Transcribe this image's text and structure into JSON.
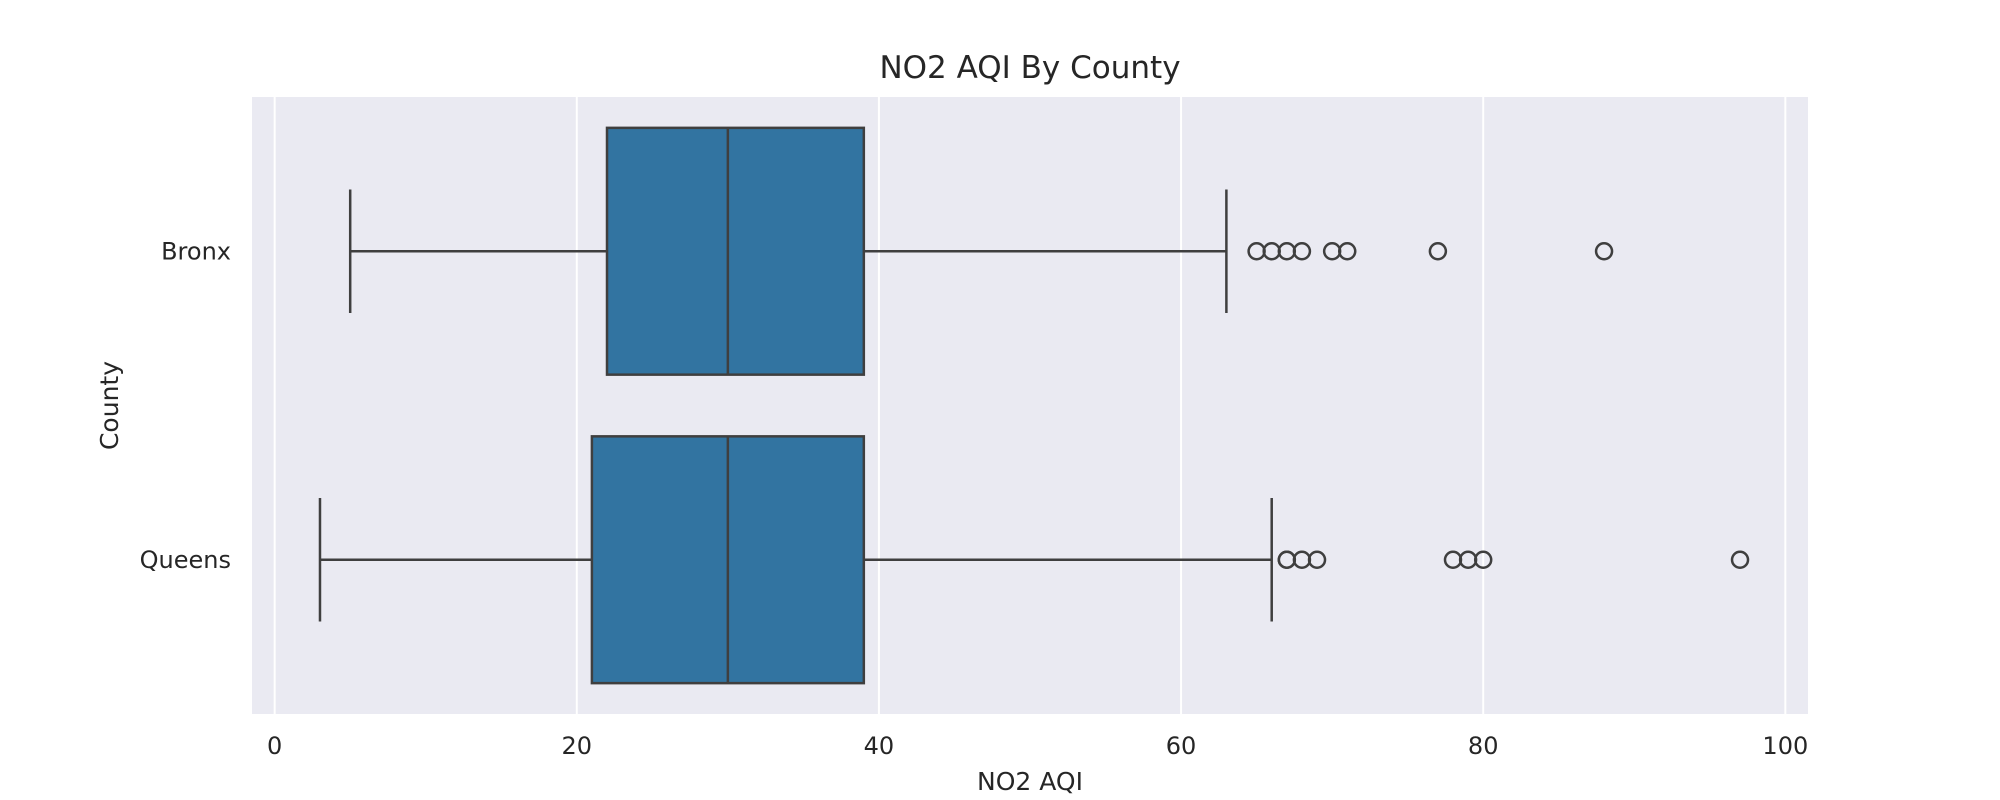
{
  "chart_data": {
    "type": "boxplot",
    "orientation": "horizontal",
    "title": "NO2 AQI By County",
    "xlabel": "NO2 AQI",
    "ylabel": "County",
    "xlim": [
      -1.5,
      101.5
    ],
    "xticks": [
      0,
      20,
      40,
      60,
      80,
      100
    ],
    "grid": true,
    "colors": {
      "background": "#eaeaf2",
      "box": "#3274a1",
      "line": "#3f3f3f",
      "grid": "#ffffff"
    },
    "categories": [
      "Bronx",
      "Queens"
    ],
    "boxes": [
      {
        "category": "Bronx",
        "whisker_low": 5,
        "q1": 22,
        "median": 30,
        "q3": 39,
        "whisker_high": 63,
        "outliers": [
          65,
          66,
          67,
          68,
          70,
          71,
          77,
          88
        ]
      },
      {
        "category": "Queens",
        "whisker_low": 3,
        "q1": 21,
        "median": 30,
        "q3": 39,
        "whisker_high": 66,
        "outliers": [
          67,
          67,
          68,
          69,
          78,
          79,
          80,
          97
        ]
      }
    ]
  }
}
